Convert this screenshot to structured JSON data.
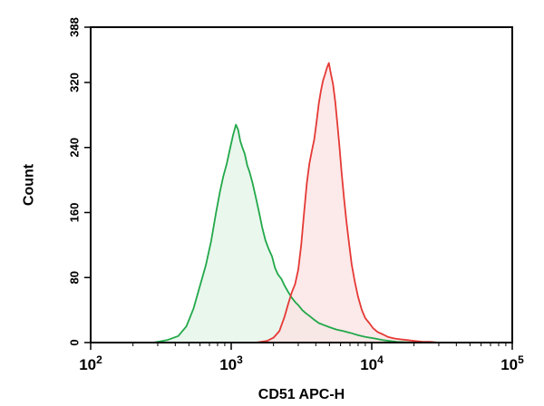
{
  "chart_data": {
    "type": "area",
    "title": "",
    "xlabel": "CD51 APC-H",
    "ylabel": "Count",
    "x_scale": "log",
    "xlim": [
      100,
      100000
    ],
    "ylim": [
      0,
      388
    ],
    "x_ticks": [
      {
        "value": 100,
        "base": "10",
        "exp": "2"
      },
      {
        "value": 1000,
        "base": "10",
        "exp": "3"
      },
      {
        "value": 10000,
        "base": "10",
        "exp": "4"
      },
      {
        "value": 100000,
        "base": "10",
        "exp": "5"
      }
    ],
    "y_ticks": [
      0,
      80,
      160,
      240,
      320,
      388
    ],
    "y_tick_labels": [
      "0",
      "80",
      "160",
      "240",
      "320",
      "388"
    ],
    "grid": false,
    "legend": "none",
    "series": [
      {
        "color": "#22a84a",
        "fill": "#e3f4e7",
        "x": [
          280,
          350,
          420,
          480,
          540,
          600,
          660,
          720,
          780,
          830,
          880,
          930,
          980,
          1030,
          1080,
          1120,
          1160,
          1200,
          1250,
          1300,
          1350,
          1420,
          1500,
          1580,
          1660,
          1750,
          1850,
          1950,
          2050,
          2150,
          2280,
          2400,
          2550,
          2700,
          2850,
          3000,
          3200,
          3400,
          3650,
          3900,
          4200,
          4500,
          5000,
          5600,
          6300,
          7000,
          8000,
          9000,
          10500,
          12000,
          15000,
          20000
        ],
        "y": [
          0,
          3,
          8,
          20,
          42,
          70,
          95,
          125,
          160,
          185,
          205,
          220,
          238,
          255,
          268,
          262,
          248,
          240,
          232,
          218,
          210,
          196,
          178,
          160,
          142,
          126,
          115,
          106,
          92,
          84,
          78,
          70,
          62,
          55,
          50,
          46,
          40,
          36,
          32,
          28,
          24,
          22,
          19,
          16,
          14,
          12,
          9,
          7,
          5,
          3,
          1,
          0
        ]
      },
      {
        "color": "#e53935",
        "fill": "#fbe1e1",
        "x": [
          1500,
          1800,
          2000,
          2200,
          2400,
          2550,
          2700,
          2850,
          3000,
          3150,
          3300,
          3450,
          3600,
          3750,
          3900,
          4050,
          4200,
          4350,
          4500,
          4650,
          4800,
          4950,
          5100,
          5300,
          5500,
          5700,
          5900,
          6100,
          6350,
          6600,
          6900,
          7200,
          7600,
          8000,
          8500,
          9000,
          9600,
          10200,
          11000,
          12000,
          13000,
          14500,
          16000,
          18000,
          20000,
          23000,
          26000,
          30000
        ],
        "y": [
          0,
          2,
          6,
          14,
          32,
          48,
          62,
          72,
          90,
          120,
          160,
          196,
          220,
          236,
          250,
          272,
          294,
          310,
          322,
          330,
          338,
          344,
          332,
          318,
          296,
          268,
          240,
          210,
          178,
          150,
          122,
          96,
          74,
          56,
          40,
          30,
          24,
          18,
          13,
          10,
          7,
          5,
          4,
          3,
          2,
          1,
          1,
          0
        ]
      }
    ]
  }
}
